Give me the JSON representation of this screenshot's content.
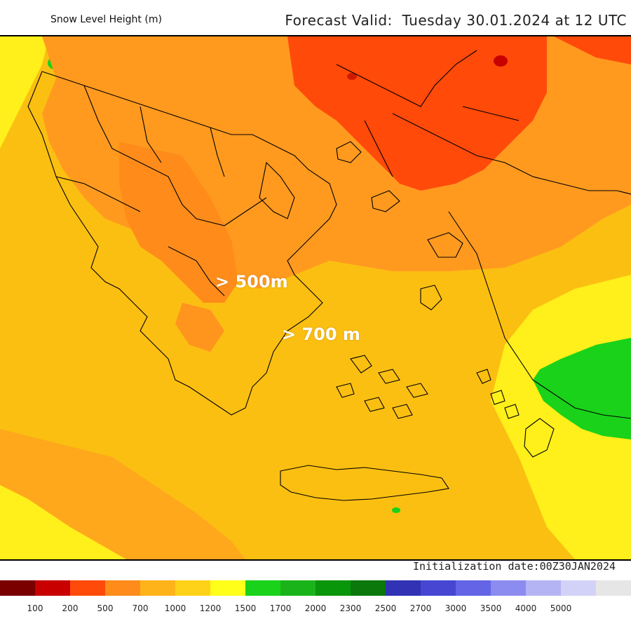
{
  "header": {
    "title_left": "Snow Level Height (m)",
    "title_right": "Forecast Valid:  Tuesday 30.01.2024 at 12 UTC"
  },
  "map": {
    "annotations": [
      {
        "text": "> 500m"
      },
      {
        "text": "> 700 m"
      }
    ]
  },
  "footer": {
    "init_date": "Initialization date:00Z30JAN2024"
  },
  "legend": {
    "colors": [
      "#7a0000",
      "#c80000",
      "#ff4a0a",
      "#ff8c1a",
      "#ffb31a",
      "#ffd21a",
      "#ffff1a",
      "#1ad21a",
      "#1ab41a",
      "#0a960a",
      "#0a780a",
      "#3232b4",
      "#4646d2",
      "#6464e6",
      "#8c8cf0",
      "#b4b4f5",
      "#d2d2f8",
      "#e6e6e6"
    ],
    "labels": [
      "100",
      "200",
      "500",
      "700",
      "1000",
      "1200",
      "1500",
      "1700",
      "2000",
      "2300",
      "2500",
      "2700",
      "3000",
      "3500",
      "4000",
      "5000"
    ]
  }
}
